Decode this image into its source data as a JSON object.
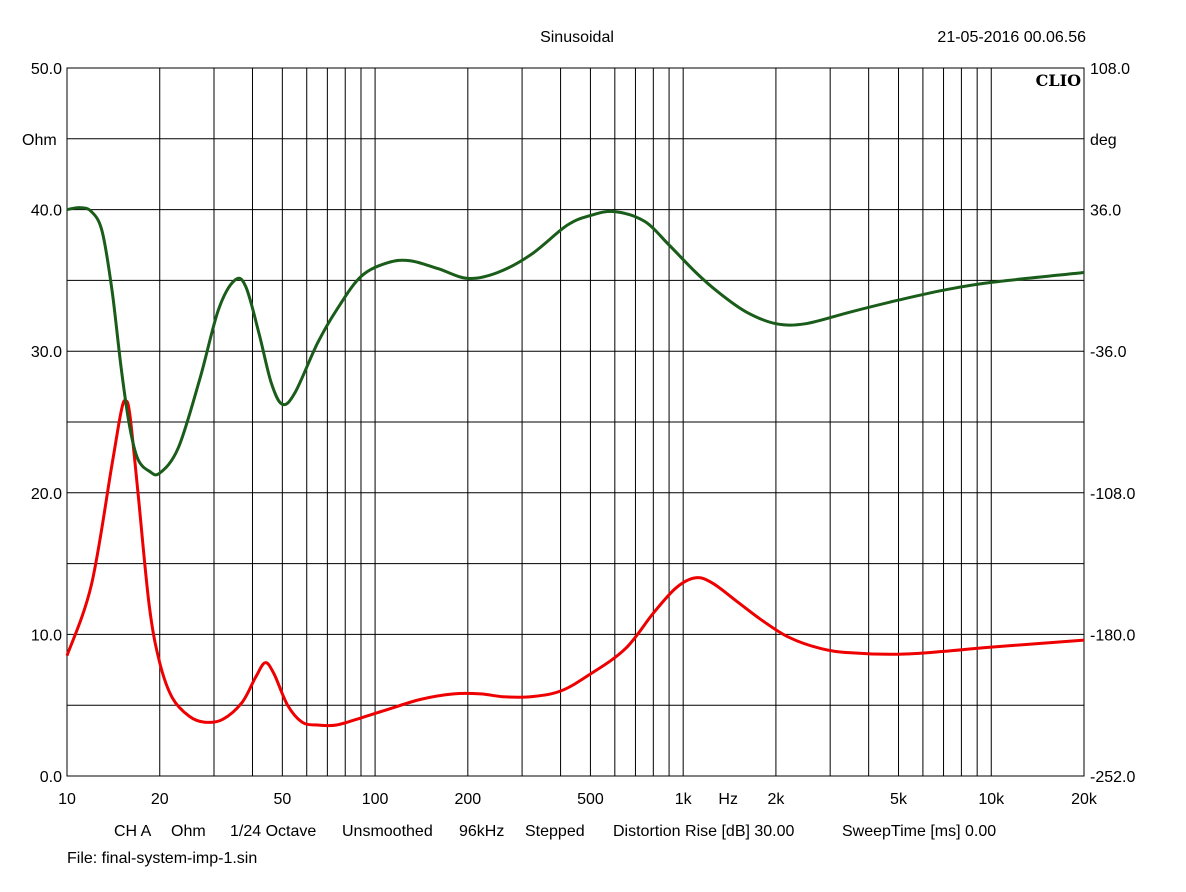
{
  "header": {
    "title": "Sinusoidal",
    "timestamp": "21-05-2016 00.06.56",
    "brand": "CLIO"
  },
  "footer": {
    "settings": [
      "CH A",
      "Ohm",
      "1/24 Octave",
      "Unsmoothed",
      "96kHz",
      "Stepped",
      "Distortion Rise [dB] 30.00",
      "SweepTime [ms] 0.00"
    ],
    "file": "File: final-system-imp-1.sin"
  },
  "chart_data": {
    "type": "line",
    "x_scale": "log",
    "xlim": [
      10,
      20000
    ],
    "xlabel": "Hz",
    "x_tick_labels": [
      {
        "x": 10,
        "label": "10"
      },
      {
        "x": 20,
        "label": "20"
      },
      {
        "x": 50,
        "label": "50"
      },
      {
        "x": 100,
        "label": "100"
      },
      {
        "x": 200,
        "label": "200"
      },
      {
        "x": 500,
        "label": "500"
      },
      {
        "x": 1000,
        "label": "1k"
      },
      {
        "x": 2000,
        "label": "2k"
      },
      {
        "x": 5000,
        "label": "5k"
      },
      {
        "x": 10000,
        "label": "10k"
      },
      {
        "x": 20000,
        "label": "20k"
      }
    ],
    "y_left": {
      "unit": "Ohm",
      "ylim": [
        0,
        50
      ],
      "tick_labels": [
        "0.0",
        "10.0",
        "20.0",
        "30.0",
        "40.0",
        "50.0"
      ]
    },
    "y_right": {
      "unit": "deg",
      "ylim": [
        -252,
        108
      ],
      "tick_labels": [
        "-252.0",
        "-180.0",
        "-108.0",
        "-36.0",
        "36.0",
        "108.0"
      ]
    },
    "grid": true,
    "series": [
      {
        "color": "#ee0000",
        "axis": "left",
        "points": [
          [
            10,
            8.5
          ],
          [
            12,
            13.5
          ],
          [
            14,
            22.0
          ],
          [
            15,
            25.8
          ],
          [
            15.5,
            26.5
          ],
          [
            16,
            25.5
          ],
          [
            17,
            20.0
          ],
          [
            18.5,
            12.0
          ],
          [
            20,
            8.0
          ],
          [
            22,
            5.5
          ],
          [
            25,
            4.2
          ],
          [
            28,
            3.8
          ],
          [
            32,
            4.0
          ],
          [
            37,
            5.2
          ],
          [
            41,
            7.0
          ],
          [
            44,
            8.0
          ],
          [
            47,
            7.2
          ],
          [
            52,
            5.0
          ],
          [
            58,
            3.8
          ],
          [
            65,
            3.6
          ],
          [
            75,
            3.6
          ],
          [
            90,
            4.1
          ],
          [
            110,
            4.7
          ],
          [
            140,
            5.4
          ],
          [
            180,
            5.8
          ],
          [
            220,
            5.8
          ],
          [
            260,
            5.6
          ],
          [
            320,
            5.6
          ],
          [
            400,
            6.0
          ],
          [
            500,
            7.2
          ],
          [
            650,
            9.0
          ],
          [
            800,
            11.5
          ],
          [
            950,
            13.3
          ],
          [
            1100,
            14.0
          ],
          [
            1250,
            13.6
          ],
          [
            1500,
            12.3
          ],
          [
            1800,
            11.0
          ],
          [
            2200,
            9.8
          ],
          [
            2800,
            9.0
          ],
          [
            3500,
            8.7
          ],
          [
            5000,
            8.6
          ],
          [
            7000,
            8.8
          ],
          [
            10000,
            9.1
          ],
          [
            20000,
            9.6
          ]
        ]
      },
      {
        "color": "#1a5c1a",
        "axis": "right",
        "points": [
          [
            10,
            36
          ],
          [
            11,
            37
          ],
          [
            12,
            35
          ],
          [
            13,
            25
          ],
          [
            14,
            -5
          ],
          [
            15,
            -45
          ],
          [
            16,
            -75
          ],
          [
            17,
            -91
          ],
          [
            18.5,
            -97
          ],
          [
            20,
            -98
          ],
          [
            23,
            -85
          ],
          [
            27,
            -50
          ],
          [
            31,
            -15
          ],
          [
            35,
            0
          ],
          [
            38,
            -3
          ],
          [
            42,
            -27
          ],
          [
            46,
            -52
          ],
          [
            50,
            -63
          ],
          [
            55,
            -57
          ],
          [
            65,
            -32
          ],
          [
            75,
            -15
          ],
          [
            90,
            2
          ],
          [
            110,
            9
          ],
          [
            130,
            10
          ],
          [
            160,
            6
          ],
          [
            200,
            1
          ],
          [
            250,
            4
          ],
          [
            320,
            13
          ],
          [
            420,
            28
          ],
          [
            500,
            33
          ],
          [
            600,
            35
          ],
          [
            750,
            30
          ],
          [
            900,
            18
          ],
          [
            1100,
            4
          ],
          [
            1300,
            -6
          ],
          [
            1600,
            -16
          ],
          [
            2000,
            -22
          ],
          [
            2500,
            -22
          ],
          [
            3500,
            -16
          ],
          [
            5000,
            -10
          ],
          [
            7000,
            -5
          ],
          [
            10000,
            -1
          ],
          [
            20000,
            4
          ]
        ]
      }
    ]
  }
}
